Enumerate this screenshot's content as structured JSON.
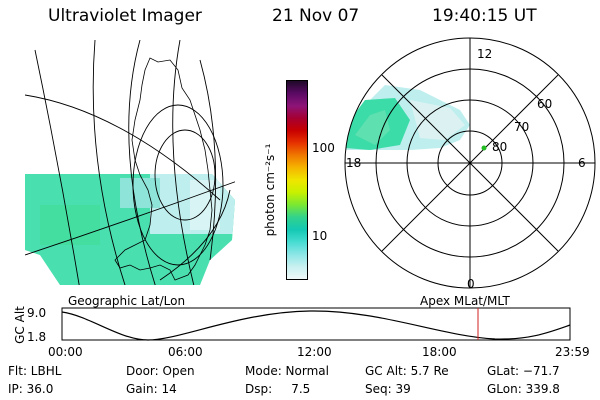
{
  "header": {
    "instrument": "Ultraviolet Imager",
    "date": "21 Nov 07",
    "time": "19:40:15 UT"
  },
  "colorbar": {
    "label": "photon cm⁻²s⁻¹",
    "ticks": [
      "100",
      "10"
    ],
    "stops": [
      "#1e0a28",
      "#5a0a64",
      "#8c1478",
      "#a50032",
      "#c80000",
      "#e63200",
      "#f07800",
      "#f5b400",
      "#f0e600",
      "#c8f000",
      "#7ae832",
      "#32d28c",
      "#14c8b4",
      "#46dcd2",
      "#8ce6e6",
      "#c8f0f0",
      "#f0f8f8"
    ]
  },
  "maps": {
    "left_label": "Geographic Lat/Lon",
    "right_label": "Apex MLat/MLT",
    "polar_labels": [
      "12",
      "60",
      "70",
      "80",
      "18",
      "6",
      "0"
    ]
  },
  "altitude_plot": {
    "ylabel": "GC Alt",
    "yticks": [
      "9.0",
      "1.8"
    ],
    "xticks": [
      "00:00",
      "06:00",
      "12:00",
      "18:00",
      "23:59"
    ]
  },
  "status": {
    "filter": "Flt: LBHL",
    "door": "Door: Open",
    "mode": "Mode: Normal",
    "gc_alt": "GC Alt: 5.7 Re",
    "glat": "GLat: −71.7",
    "ip": "IP: 36.0",
    "gain": "Gain: 14",
    "dsp": "Dsp:     7.5",
    "seq": "Seq: 39",
    "glon": "GLon: 339.8"
  }
}
